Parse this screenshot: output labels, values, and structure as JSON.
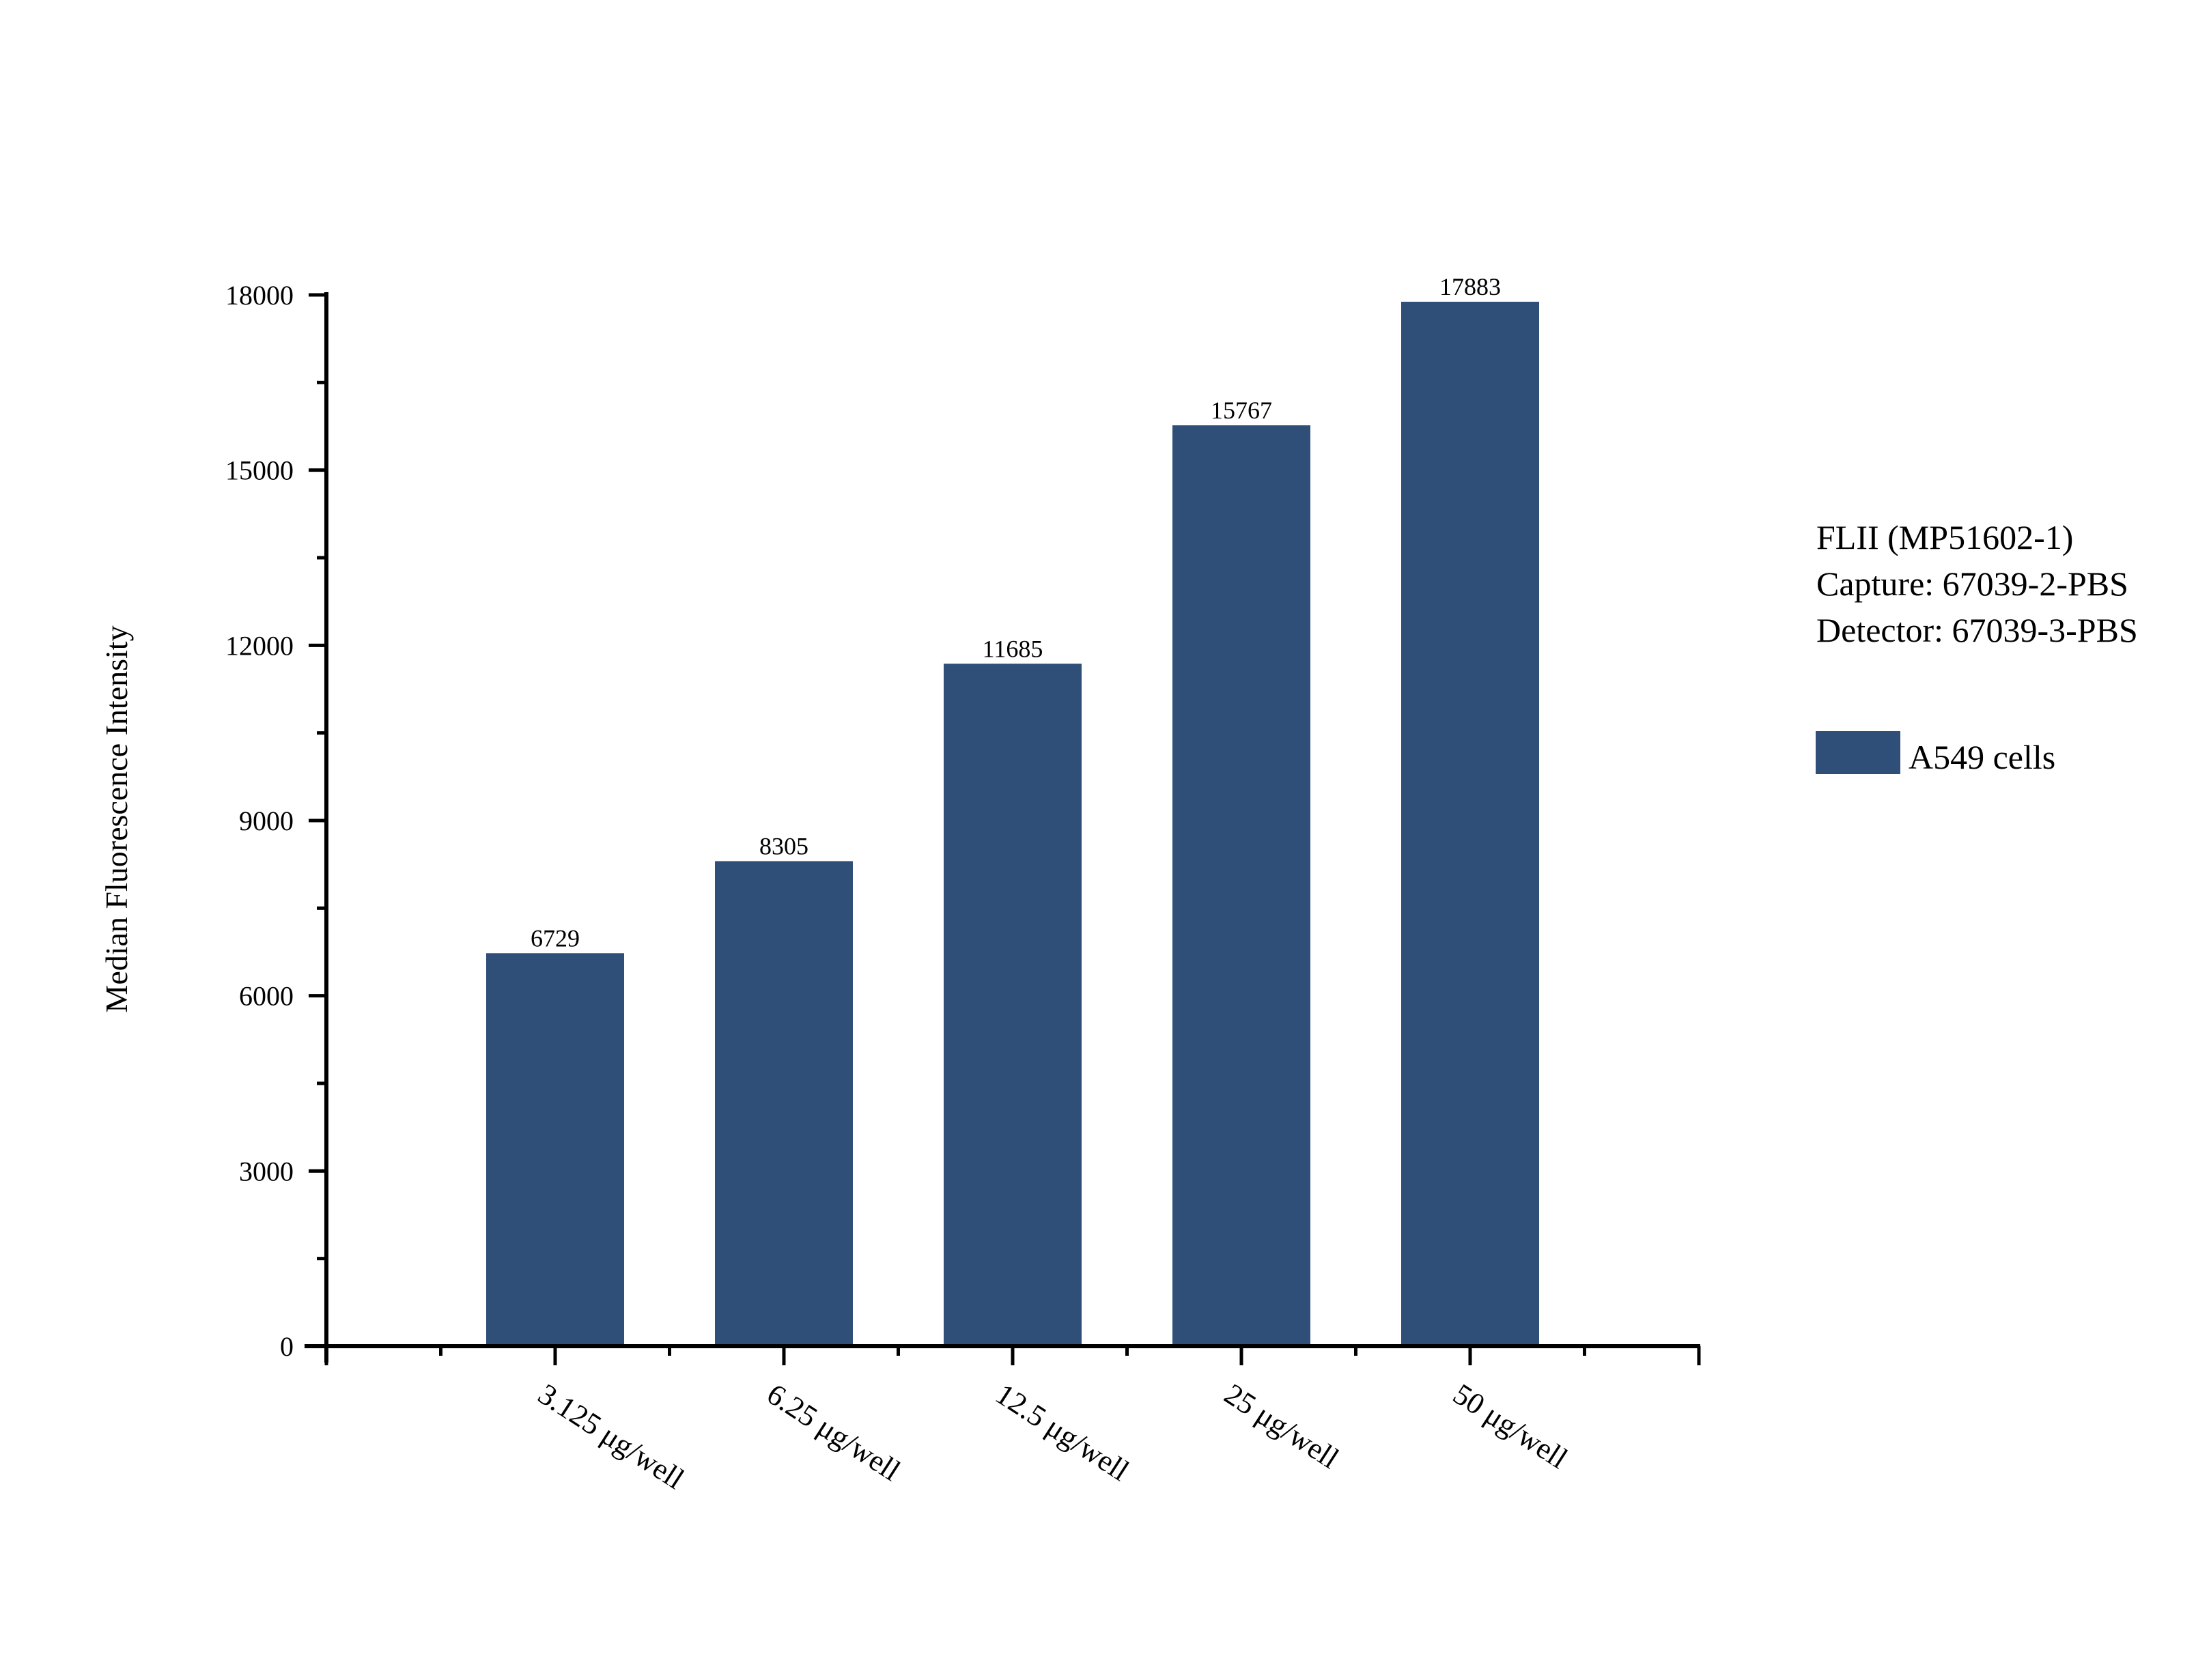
{
  "chart_data": {
    "type": "bar",
    "title": "",
    "xlabel": "",
    "ylabel": "Median Fluorescence Intensity",
    "categories": [
      "3.125 μg/well",
      "6.25 μg/well",
      "12.5 μg/well",
      "25 μg/well",
      "50 μg/well"
    ],
    "series": [
      {
        "name": "A549 cells",
        "color": "#2f4f79",
        "values": [
          6729,
          8305,
          11685,
          15767,
          17883
        ]
      }
    ],
    "value_labels": [
      "6729",
      "8305",
      "11685",
      "15767",
      "17883"
    ],
    "ylim": [
      0,
      18000
    ],
    "yticks": [
      0,
      3000,
      6000,
      9000,
      12000,
      15000,
      18000
    ],
    "ytick_labels": [
      "0",
      "3000",
      "6000",
      "9000",
      "12000",
      "15000",
      "18000"
    ],
    "grid": false,
    "legend_position": "right",
    "annotations": [
      "FLII (MP51602-1)",
      "Capture: 67039-2-PBS",
      "Detector: 67039-3-PBS"
    ]
  },
  "info": {
    "line1": "FLII (MP51602-1)",
    "line2": "Capture: 67039-2-PBS",
    "line3": "Detector: 67039-3-PBS"
  },
  "legend": {
    "label": "A549 cells",
    "color": "#2f4f79"
  },
  "axis": {
    "ylabel": "Median Fluorescence Intensity"
  }
}
